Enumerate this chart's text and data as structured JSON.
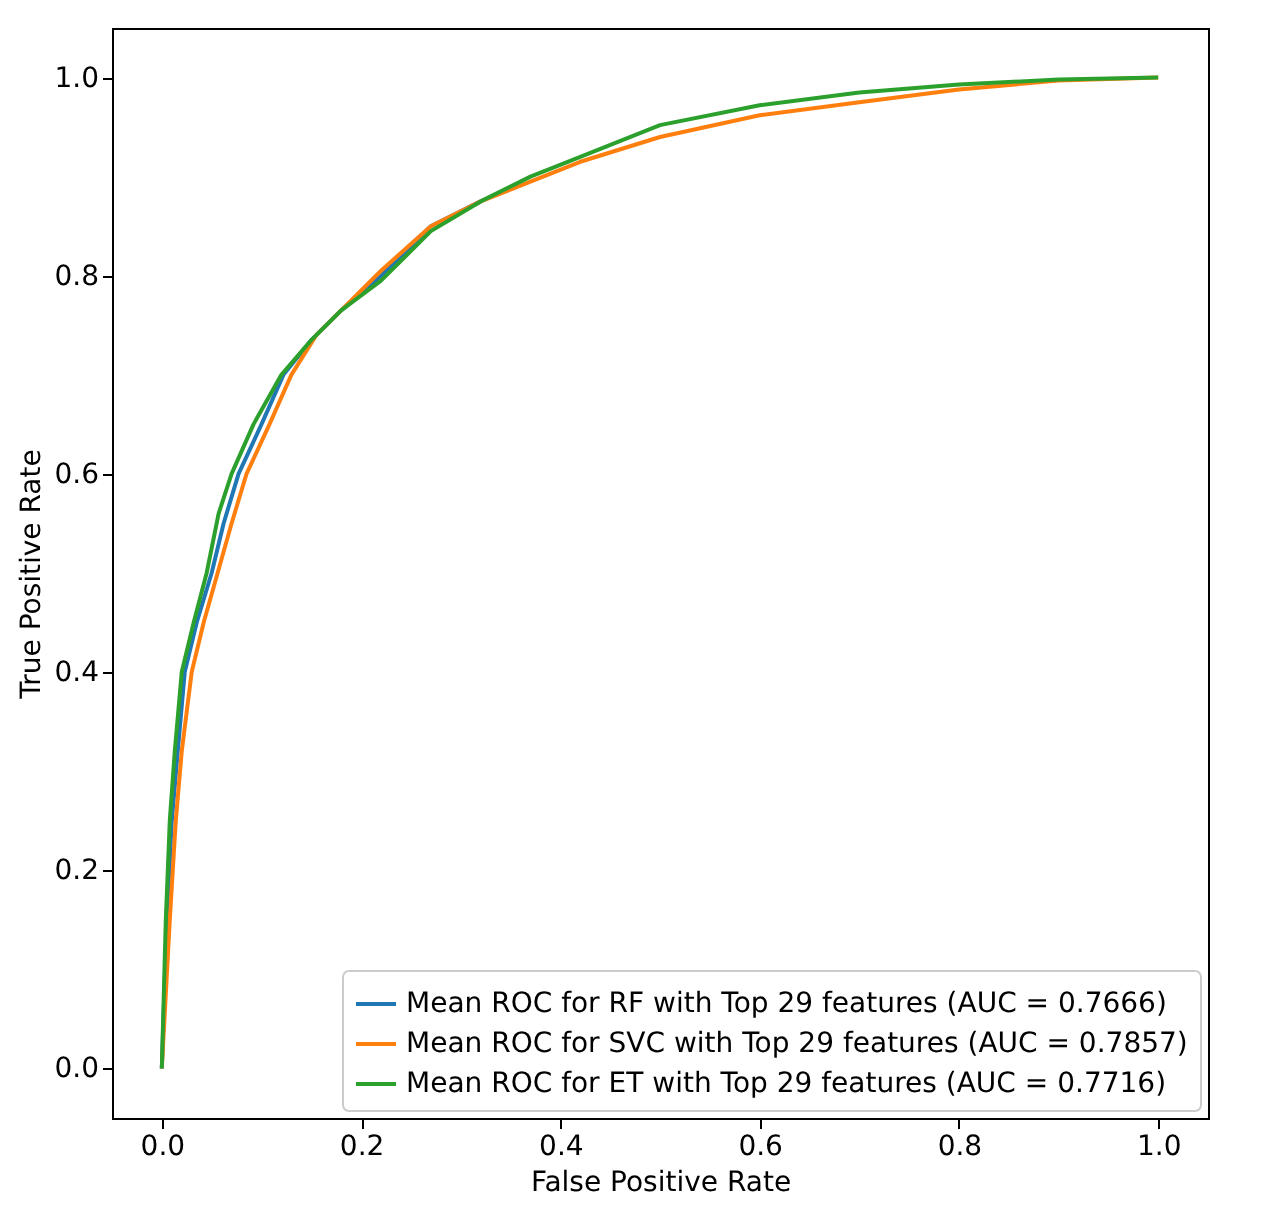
{
  "chart_data": {
    "type": "line",
    "xlabel": "False Positive Rate",
    "ylabel": "True Positive Rate",
    "xlim": [
      -0.05,
      1.05
    ],
    "ylim": [
      -0.05,
      1.05
    ],
    "xticks": [
      {
        "value": 0,
        "label": "0.0"
      },
      0.2,
      0.4,
      0.6,
      0.8,
      {
        "value": 1,
        "label": "1.0"
      }
    ],
    "yticks": [
      {
        "value": 0,
        "label": "0.0"
      },
      0.2,
      0.4,
      0.6,
      0.8,
      {
        "value": 1,
        "label": "1.0"
      }
    ],
    "grid": false,
    "legend": "bottom right",
    "line_style": "solid",
    "series": [
      {
        "name": "Mean ROC for RF with Top 29 features (AUC = 0.7666)",
        "color": "#1f77b4",
        "x": [
          0,
          0.005,
          0.01,
          0.016,
          0.023,
          0.035,
          0.05,
          0.062,
          0.077,
          0.1,
          0.122,
          0.15,
          0.18,
          0.22,
          0.27,
          0.32
        ],
        "values": [
          0,
          0.15,
          0.25,
          0.32,
          0.4,
          0.45,
          0.5,
          0.55,
          0.6,
          0.65,
          0.7,
          0.735,
          0.765,
          0.8,
          0.85,
          0.875
        ]
      },
      {
        "name": "Mean ROC for SVC with Top 29 features (AUC = 0.7857)",
        "color": "#ff7f0e",
        "x": [
          0,
          0.008,
          0.014,
          0.02,
          0.03,
          0.042,
          0.056,
          0.07,
          0.085,
          0.108,
          0.13,
          0.155,
          0.185,
          0.22,
          0.27,
          0.32,
          0.37,
          0.42,
          0.5,
          0.6,
          0.7,
          0.8,
          0.9,
          1.0
        ],
        "values": [
          0,
          0.15,
          0.25,
          0.32,
          0.4,
          0.45,
          0.5,
          0.55,
          0.6,
          0.65,
          0.7,
          0.74,
          0.77,
          0.805,
          0.85,
          0.875,
          0.895,
          0.915,
          0.94,
          0.962,
          0.975,
          0.988,
          0.997,
          1.0
        ]
      },
      {
        "name": "Mean ROC for ET with Top 29 features (AUC = 0.7716)",
        "color": "#2ca02c",
        "x": [
          0,
          0.004,
          0.008,
          0.013,
          0.02,
          0.032,
          0.045,
          0.057,
          0.07,
          0.092,
          0.12,
          0.15,
          0.18,
          0.22,
          0.27,
          0.32,
          0.37,
          0.42,
          0.5,
          0.6,
          0.7,
          0.8,
          0.9,
          1.0
        ],
        "values": [
          0,
          0.15,
          0.25,
          0.32,
          0.4,
          0.45,
          0.5,
          0.56,
          0.6,
          0.65,
          0.7,
          0.735,
          0.765,
          0.795,
          0.845,
          0.875,
          0.9,
          0.92,
          0.952,
          0.972,
          0.985,
          0.993,
          0.998,
          1.0
        ]
      }
    ]
  }
}
